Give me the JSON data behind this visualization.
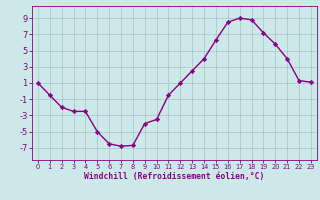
{
  "x": [
    0,
    1,
    2,
    3,
    4,
    5,
    6,
    7,
    8,
    9,
    10,
    11,
    12,
    13,
    14,
    15,
    16,
    17,
    18,
    19,
    20,
    21,
    22,
    23
  ],
  "y": [
    1,
    -0.5,
    -2,
    -2.5,
    -2.5,
    -5,
    -6.5,
    -6.8,
    -6.7,
    -4,
    -3.5,
    -0.5,
    1,
    2.5,
    4,
    6.3,
    8.5,
    9,
    8.8,
    7.2,
    5.8,
    4,
    1.3,
    1.1
  ],
  "line_color": "#880088",
  "marker": "D",
  "marker_size": 2.2,
  "bg_color": "#cce8e8",
  "grid_color": "#aacccc",
  "xlabel": "Windchill (Refroidissement éolien,°C)",
  "yticks": [
    -7,
    -5,
    -3,
    -1,
    1,
    3,
    5,
    7,
    9
  ],
  "xticks": [
    0,
    1,
    2,
    3,
    4,
    5,
    6,
    7,
    8,
    9,
    10,
    11,
    12,
    13,
    14,
    15,
    16,
    17,
    18,
    19,
    20,
    21,
    22,
    23
  ],
  "ylim": [
    -8.5,
    10.5
  ],
  "xlim": [
    -0.5,
    23.5
  ],
  "tick_color": "#880088",
  "axis_color": "#880088",
  "linewidth": 1.0,
  "ytick_fontsize": 6.0,
  "xtick_fontsize": 4.8,
  "xlabel_fontsize": 5.8
}
